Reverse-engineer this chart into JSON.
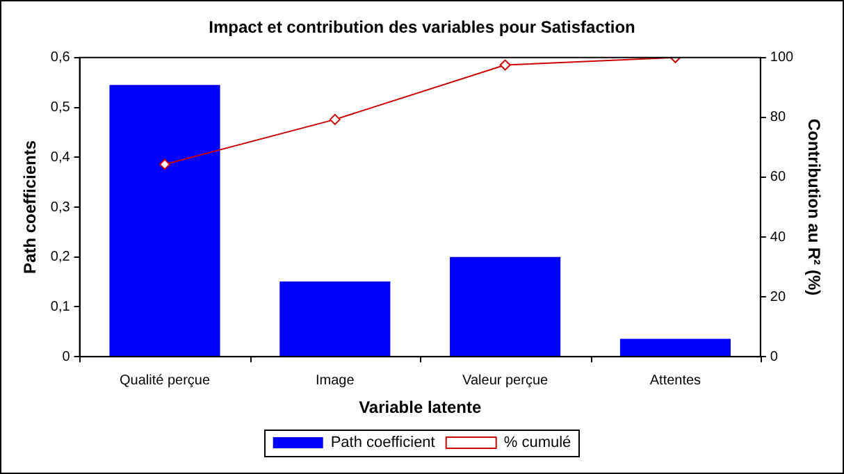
{
  "chart_data": {
    "type": "bar",
    "title": "Impact et contribution des variables pour Satisfaction",
    "xlabel": "Variable latente",
    "ylabel": "Path coefficients",
    "y2label": "Contribution au R² (%)",
    "categories": [
      "Qualité perçue",
      "Image",
      "Valeur perçue",
      "Attentes"
    ],
    "series": [
      {
        "name": "Path coefficient",
        "type": "bar",
        "color": "#0000ff",
        "values": [
          0.545,
          0.151,
          0.2,
          0.036
        ]
      },
      {
        "name": "% cumulé",
        "type": "line",
        "axis": "y2",
        "color": "#cc0000",
        "marker": "diamond",
        "values": [
          64.3,
          79.3,
          97.5,
          100
        ]
      }
    ],
    "ylim": [
      0,
      0.6
    ],
    "yticks": [
      {
        "value": 0,
        "label": "0"
      },
      {
        "value": 0.1,
        "label": "0,1"
      },
      {
        "value": 0.2,
        "label": "0,2"
      },
      {
        "value": 0.3,
        "label": "0,3"
      },
      {
        "value": 0.4,
        "label": "0,4"
      },
      {
        "value": 0.5,
        "label": "0,5"
      },
      {
        "value": 0.6,
        "label": "0,6"
      }
    ],
    "y2lim": [
      0,
      100
    ],
    "y2ticks": [
      0,
      20,
      40,
      60,
      80,
      100
    ],
    "grid": false,
    "legend": "bottom"
  }
}
